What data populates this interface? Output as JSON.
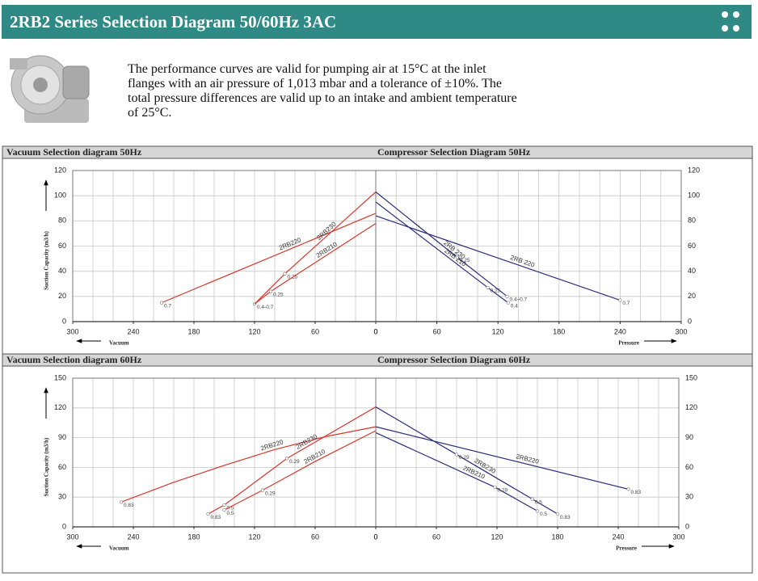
{
  "header": {
    "title": "2RB2 Series Selection Diagram 50/60Hz 3AC"
  },
  "description": "The performance curves are valid for pumping air at 15°C at the inlet flanges with an air pressure of 1,013 mbar and a tolerance of ±10%. The total pressure differences are valid up to an intake and ambient temperature of 25°C.",
  "chart_data": [
    {
      "type": "line",
      "title": "Vacuum Selection diagram 50Hz",
      "ylabel": "Suction Capacity (m3/h)",
      "xlabel": "Vacuum",
      "y_axis_side": "left",
      "xlim": [
        300,
        0
      ],
      "xticks": [
        300,
        240,
        180,
        120,
        60,
        0
      ],
      "x_gridlines": [
        20,
        40,
        60,
        80,
        100,
        120,
        140,
        160,
        180,
        200,
        220,
        240,
        260,
        280
      ],
      "ylim": [
        0,
        120
      ],
      "yticks": [
        0,
        20,
        40,
        60,
        80,
        100,
        120
      ],
      "grid": true,
      "series": [
        {
          "name": "2RB220",
          "color": "#d9362b",
          "x": [
            212,
            0
          ],
          "values": [
            15,
            86
          ],
          "point_labels": [
            "0.7",
            null
          ]
        },
        {
          "name": "2RB230",
          "color": "#d9362b",
          "x": [
            120,
            90,
            0
          ],
          "values": [
            14,
            38,
            103
          ],
          "point_labels": [
            "0.4-0.7",
            "0.25",
            null
          ]
        },
        {
          "name": "2RB210",
          "color": "#d9362b",
          "x": [
            120,
            104,
            0
          ],
          "values": [
            14,
            24,
            78
          ],
          "point_labels": [
            null,
            "0.25",
            null
          ]
        }
      ]
    },
    {
      "type": "line",
      "title": "Compressor Selection Diagram 50Hz",
      "xlabel": "Pressure",
      "y_axis_side": "right",
      "xlim": [
        0,
        300
      ],
      "xticks": [
        0,
        60,
        120,
        180,
        240,
        300
      ],
      "x_gridlines": [
        20,
        40,
        60,
        80,
        100,
        120,
        140,
        160,
        180,
        200,
        220,
        240,
        260,
        280
      ],
      "ylim": [
        0,
        120
      ],
      "yticks": [
        0,
        20,
        40,
        60,
        80,
        100,
        120
      ],
      "grid": true,
      "series": [
        {
          "name": "2RB 230",
          "color": "#2b2f7a",
          "x": [
            0,
            80,
            129
          ],
          "values": [
            103,
            51,
            20
          ],
          "point_labels": [
            null,
            "0.25",
            "0.4÷0.7"
          ]
        },
        {
          "name": "2RB 210",
          "color": "#2b2f7a",
          "x": [
            0,
            110,
            130
          ],
          "values": [
            95,
            27,
            15
          ],
          "point_labels": [
            null,
            "0.25",
            "0.4"
          ]
        },
        {
          "name": "2RB 220",
          "color": "#2b2f7a",
          "x": [
            0,
            240
          ],
          "values": [
            84,
            17
          ],
          "point_labels": [
            null,
            "0.7"
          ]
        }
      ]
    },
    {
      "type": "line",
      "title": "Vacuum Selection diagram 60Hz",
      "ylabel": "Suction Capacity (m3/h)",
      "xlabel": "Vacuum",
      "y_axis_side": "left",
      "xlim": [
        300,
        0
      ],
      "xticks": [
        300,
        240,
        180,
        120,
        60,
        0
      ],
      "x_gridlines": [
        20,
        40,
        60,
        80,
        100,
        120,
        140,
        160,
        180,
        200,
        220,
        240,
        260,
        280
      ],
      "ylim": [
        0,
        150
      ],
      "yticks": [
        0,
        30,
        60,
        90,
        120,
        150
      ],
      "grid": true,
      "series": [
        {
          "name": "2RB220",
          "color": "#d9362b",
          "x": [
            252,
            200,
            150,
            100,
            50,
            0
          ],
          "values": [
            25,
            45,
            62,
            78,
            91,
            101
          ],
          "point_labels": [
            "0.83",
            null,
            null,
            null,
            null,
            null
          ]
        },
        {
          "name": "2RB230",
          "color": "#d9362b",
          "x": [
            166,
            150,
            88,
            0
          ],
          "values": [
            13,
            22,
            69,
            121
          ],
          "point_labels": [
            "0.83",
            "0.5",
            "0.29",
            null
          ]
        },
        {
          "name": "2RB210",
          "color": "#d9362b",
          "x": [
            150,
            112,
            60,
            0
          ],
          "values": [
            17,
            37,
            66,
            97
          ],
          "point_labels": [
            "0.5",
            "0.29",
            null,
            null
          ]
        }
      ]
    },
    {
      "type": "line",
      "title": "Compressor Selection Diagram 60Hz",
      "xlabel": "Pressure",
      "y_axis_side": "right",
      "xlim": [
        0,
        300
      ],
      "xticks": [
        0,
        60,
        120,
        180,
        240,
        300
      ],
      "x_gridlines": [
        20,
        40,
        60,
        80,
        100,
        120,
        140,
        160,
        180,
        200,
        220,
        240,
        260,
        280
      ],
      "ylim": [
        0,
        150
      ],
      "yticks": [
        0,
        30,
        60,
        90,
        120,
        150
      ],
      "grid": true,
      "series": [
        {
          "name": "2RB230",
          "color": "#2b2f7a",
          "x": [
            0,
            80,
            155,
            180
          ],
          "values": [
            121,
            73,
            28,
            13
          ],
          "point_labels": [
            null,
            "0.29",
            "0.5",
            "0.83"
          ]
        },
        {
          "name": "2RB220",
          "color": "#2b2f7a",
          "x": [
            0,
            250
          ],
          "values": [
            101,
            38
          ],
          "point_labels": [
            null,
            "0.83"
          ]
        },
        {
          "name": "2RB210",
          "color": "#2b2f7a",
          "x": [
            0,
            118,
            160
          ],
          "values": [
            95,
            40,
            16
          ],
          "point_labels": [
            null,
            "0.29",
            "0.5"
          ]
        }
      ]
    }
  ]
}
